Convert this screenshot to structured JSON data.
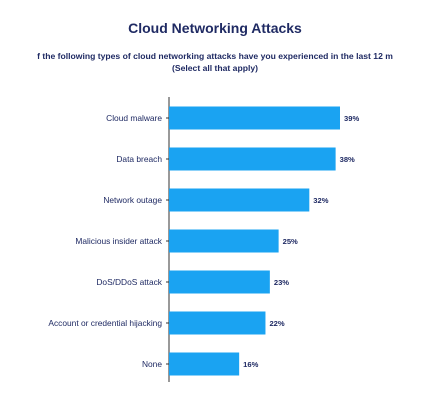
{
  "colors": {
    "bar": "#1aa3f2",
    "text": "#1f2a63",
    "axis": "#333333"
  },
  "chart_data": {
    "type": "bar",
    "orientation": "horizontal",
    "title": "Cloud Networking Attacks",
    "subtitle_lines": [
      "f the following types of cloud networking attacks have you experienced in the last 12 m",
      "(Select all that apply)"
    ],
    "categories": [
      "Cloud malware",
      "Data breach",
      "Network outage",
      "Malicious insider attack",
      "DoS/DDoS attack",
      "Account or credential hijacking",
      "None"
    ],
    "values": [
      39,
      38,
      32,
      25,
      23,
      22,
      16
    ],
    "value_labels": [
      "39%",
      "38%",
      "32%",
      "25%",
      "23%",
      "22%",
      "16%"
    ],
    "xlim": [
      0,
      40
    ],
    "grid": false,
    "legend": "none"
  }
}
